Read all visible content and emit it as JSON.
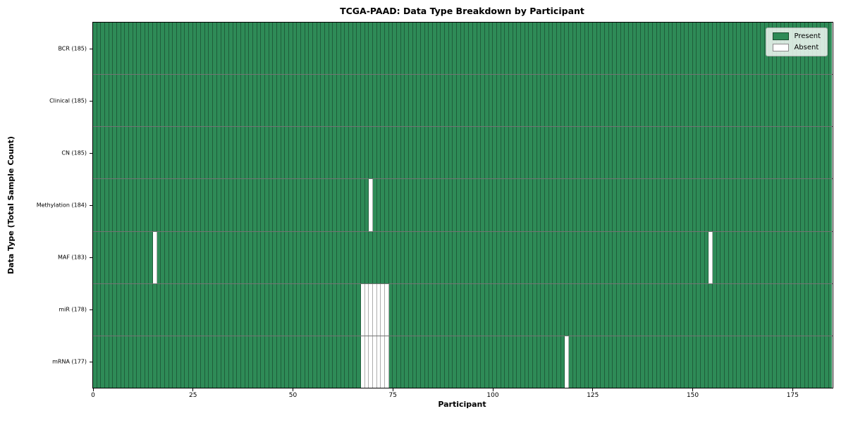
{
  "chart_data": {
    "type": "heatmap",
    "title": "TCGA-PAAD: Data Type Breakdown by Participant",
    "xlabel": "Participant",
    "ylabel": "Data Type (Total Sample Count)",
    "n_participants": 185,
    "xlim": [
      0,
      185
    ],
    "x_ticks": [
      0,
      25,
      50,
      75,
      100,
      125,
      150,
      175
    ],
    "colors": {
      "present": "#2e8b57",
      "absent": "#ffffff",
      "cell_edge": "rgba(0,0,0,0.32)",
      "row_edge": "rgba(0,0,0,0.55)"
    },
    "legend": [
      {
        "label": "Present",
        "color": "#2e8b57"
      },
      {
        "label": "Absent",
        "color": "#ffffff"
      }
    ],
    "rows": [
      {
        "label": "BCR (185)",
        "data_type": "BCR",
        "present_count": 185,
        "absent_participants": []
      },
      {
        "label": "Clinical (185)",
        "data_type": "Clinical",
        "present_count": 185,
        "absent_participants": []
      },
      {
        "label": "CN (185)",
        "data_type": "CN",
        "present_count": 185,
        "absent_participants": []
      },
      {
        "label": "Methylation (184)",
        "data_type": "Methylation",
        "present_count": 184,
        "absent_participants": [
          69
        ]
      },
      {
        "label": "MAF (183)",
        "data_type": "MAF",
        "present_count": 183,
        "absent_participants": [
          15,
          154
        ]
      },
      {
        "label": "miR (178)",
        "data_type": "miR",
        "present_count": 178,
        "absent_participants": [
          67,
          68,
          69,
          70,
          71,
          72,
          73
        ]
      },
      {
        "label": "mRNA (177)",
        "data_type": "mRNA",
        "present_count": 177,
        "absent_participants": [
          67,
          68,
          69,
          70,
          71,
          72,
          73,
          118
        ]
      }
    ]
  }
}
